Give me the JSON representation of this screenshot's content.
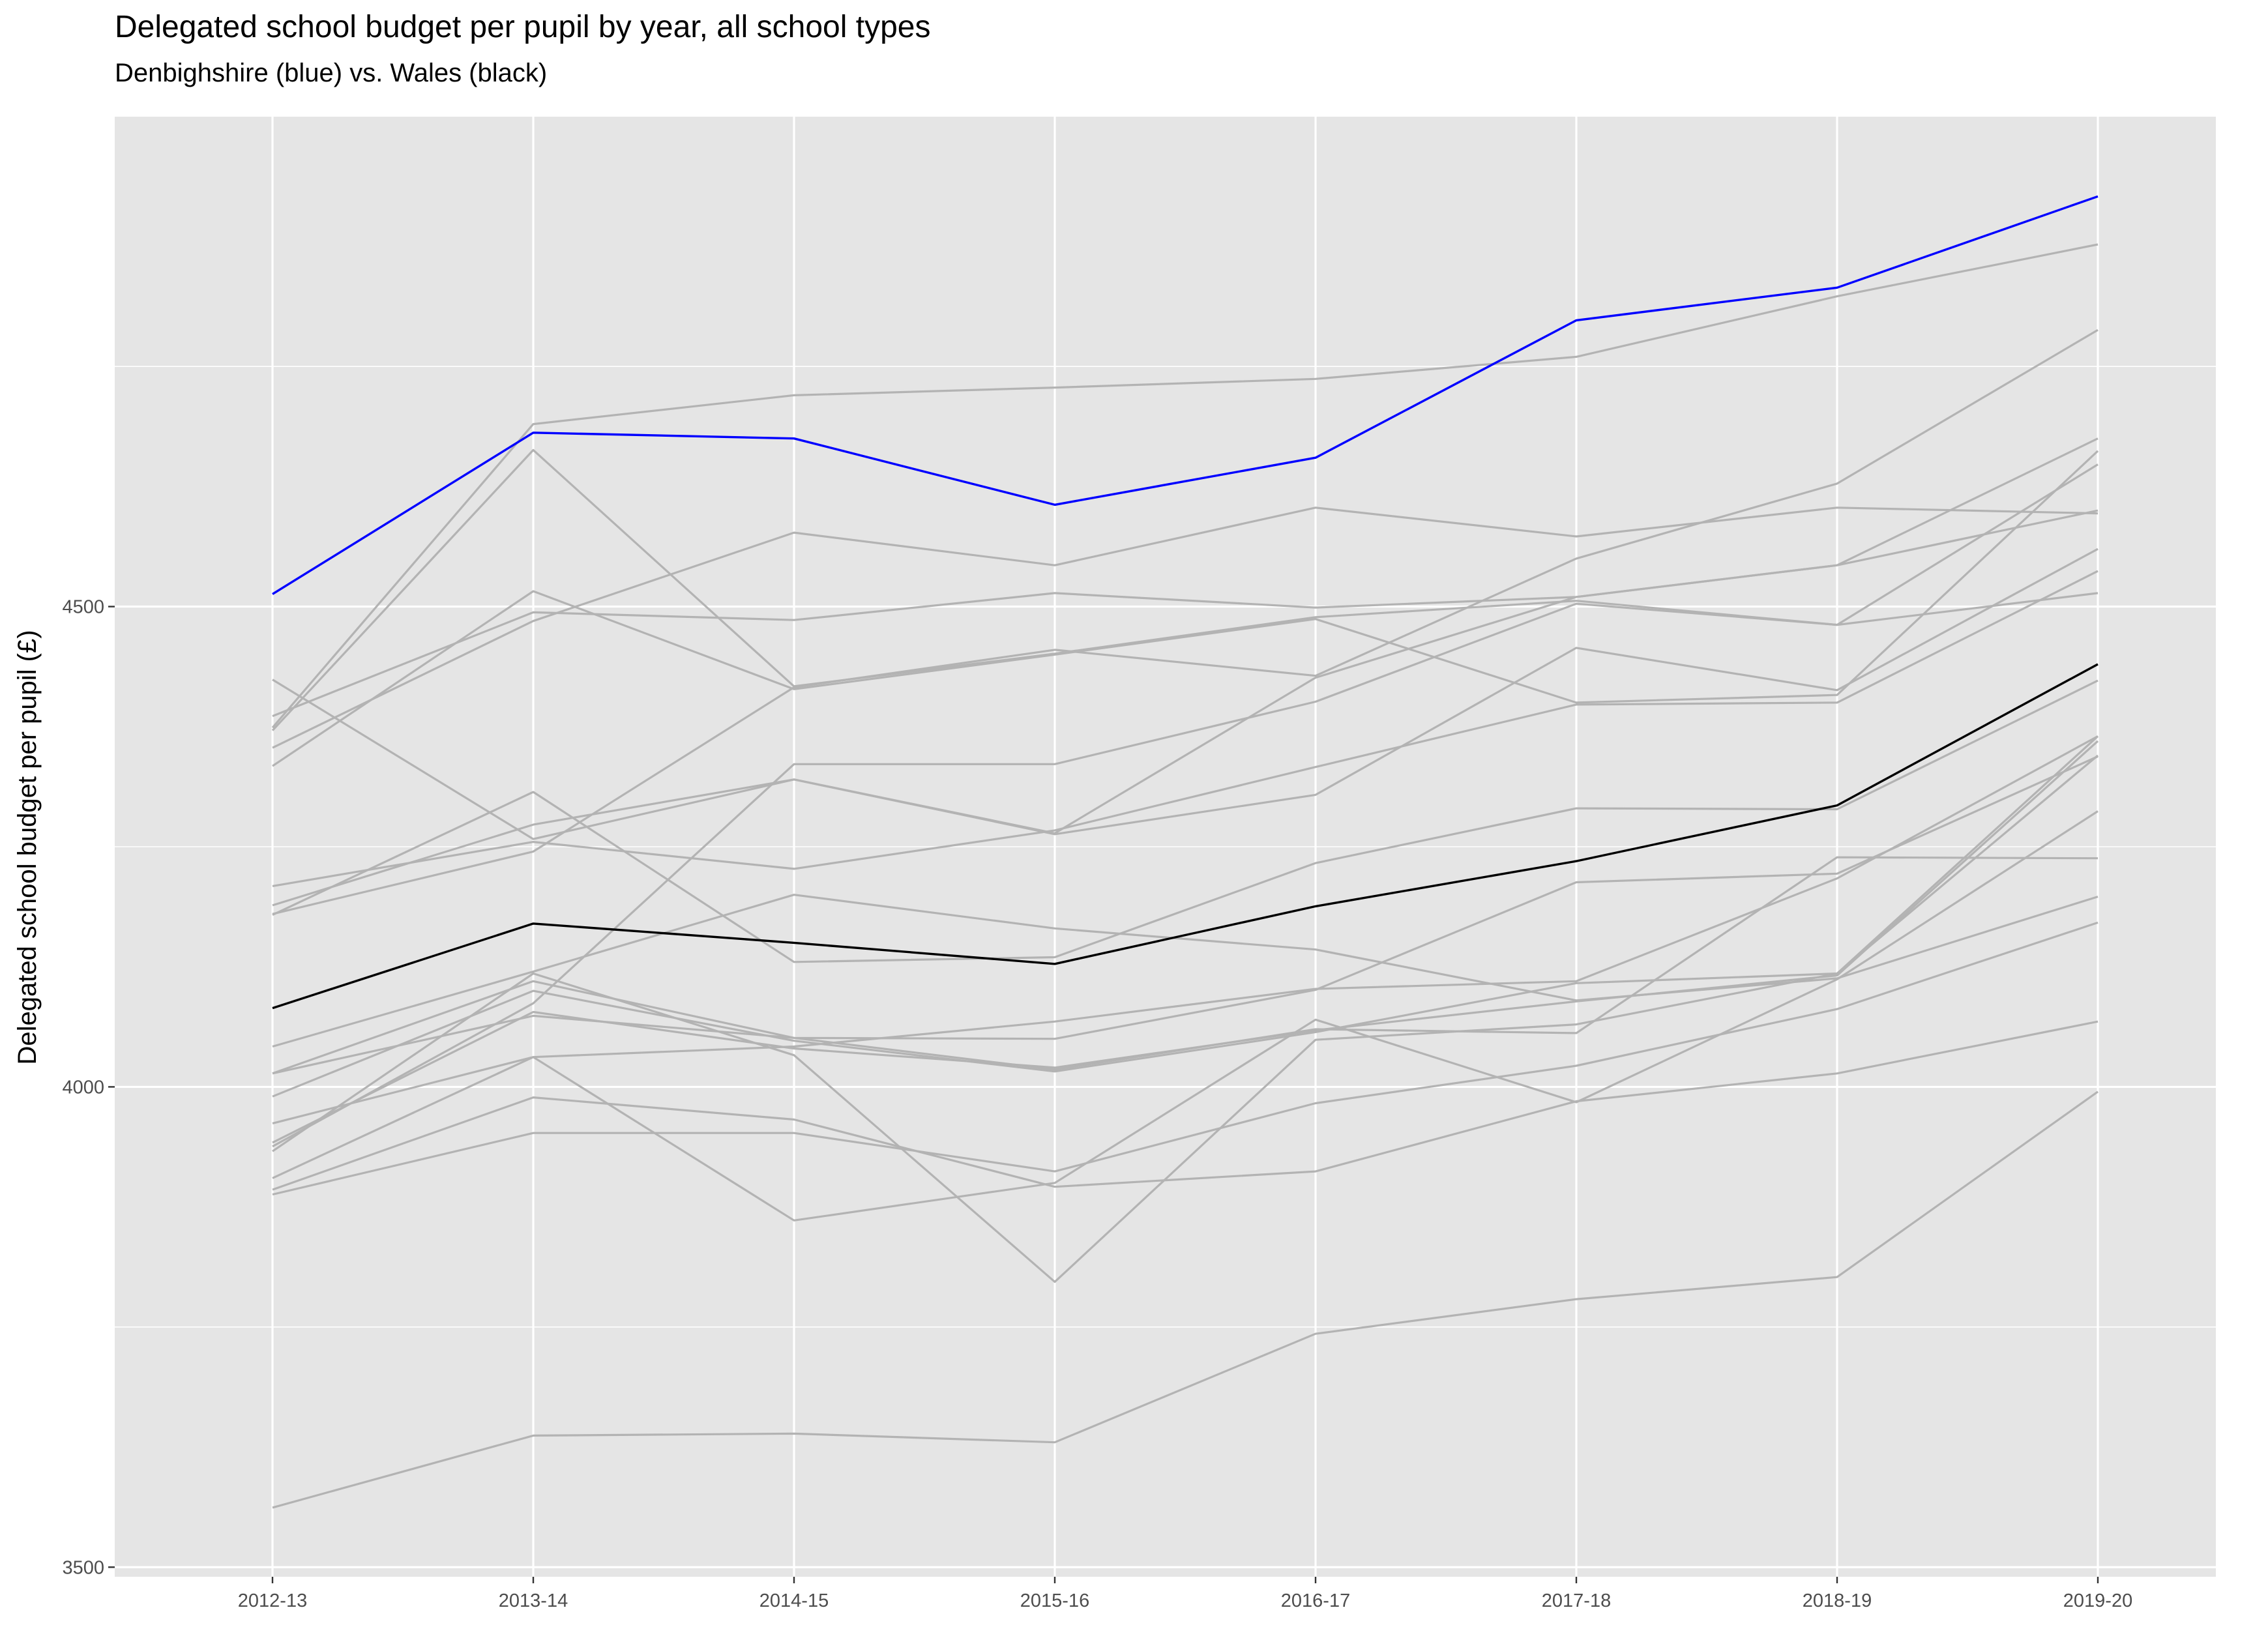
{
  "title": "Delegated school budget per pupil by year, all school types",
  "subtitle": "Denbighshire (blue) vs. Wales (black)",
  "chart_data": {
    "type": "line",
    "title": "Delegated school budget per pupil by year, all school types",
    "subtitle": "Denbighshire (blue) vs. Wales (black)",
    "xlabel": "",
    "ylabel": "Delegated school budget per pupil (£)",
    "categories": [
      "2012-13",
      "2013-14",
      "2014-15",
      "2015-16",
      "2016-17",
      "2017-18",
      "2018-19",
      "2019-20"
    ],
    "yticks": [
      3500,
      4000,
      4500
    ],
    "ylim": [
      3490,
      5010
    ],
    "grid": true,
    "legend": "none",
    "colors": {
      "background": "#e5e5e5",
      "grid": "#ffffff",
      "other_authorities": "#b3b3b3",
      "denbighshire": "#0000ff",
      "wales": "#000000"
    },
    "highlight_series": [
      {
        "key": "denbighshire",
        "color": "#0000ff",
        "values": [
          4513,
          4681,
          4675,
          4606,
          4655,
          4798,
          4832,
          4927
        ]
      },
      {
        "key": "wales",
        "color": "#000000",
        "values": [
          4082,
          4170,
          4150,
          4128,
          4188,
          4235,
          4293,
          4440
        ]
      }
    ],
    "other_series": [
      [
        3562,
        3637,
        3639,
        3630,
        3743,
        3779,
        3802,
        3995
      ],
      [
        3888,
        3952,
        3952,
        3912,
        3983,
        4022,
        4081,
        4171
      ],
      [
        3893,
        3989,
        3966,
        3896,
        3912,
        3985,
        4014,
        4068
      ],
      [
        3905,
        4031,
        3861,
        3900,
        4070,
        3984,
        4112,
        4287
      ],
      [
        3933,
        4118,
        4033,
        3797,
        4049,
        4065,
        4118,
        4345
      ],
      [
        3942,
        4078,
        4040,
        4020,
        4059,
        4089,
        4116,
        4360
      ],
      [
        3938,
        4087,
        4336,
        4336,
        4401,
        4503,
        4481,
        4514
      ],
      [
        3962,
        4031,
        4042,
        4068,
        4102,
        4110,
        4217,
        4365
      ],
      [
        3990,
        4100,
        4048,
        4016,
        4057,
        4108,
        4118,
        4365
      ],
      [
        4014,
        4074,
        4051,
        4050,
        4101,
        4213,
        4222,
        4344
      ],
      [
        4014,
        4110,
        4051,
        4018,
        4060,
        4056,
        4239,
        4238
      ],
      [
        4042,
        4120,
        4200,
        4165,
        4143,
        4090,
        4113,
        4198
      ],
      [
        4179,
        4307,
        4130,
        4135,
        4233,
        4290,
        4289,
        4423
      ],
      [
        4189,
        4273,
        4320,
        4263,
        4304,
        4457,
        4413,
        4560
      ],
      [
        4209,
        4255,
        4227,
        4267,
        4333,
        4398,
        4400,
        4537
      ],
      [
        4334,
        4516,
        4414,
        4450,
        4487,
        4400,
        4408,
        4662
      ],
      [
        4371,
        4663,
        4417,
        4451,
        4489,
        4506,
        4481,
        4648
      ],
      [
        4386,
        4494,
        4486,
        4514,
        4499,
        4510,
        4543,
        4675
      ],
      [
        4424,
        4258,
        4320,
        4264,
        4426,
        4510,
        4543,
        4600
      ],
      [
        4353,
        4485,
        4577,
        4543,
        4603,
        4573,
        4603,
        4597
      ],
      [
        4180,
        4245,
        4416,
        4455,
        4428,
        4550,
        4628,
        4788
      ],
      [
        4374,
        4690,
        4720,
        4728,
        4737,
        4760,
        4823,
        4877
      ]
    ]
  }
}
